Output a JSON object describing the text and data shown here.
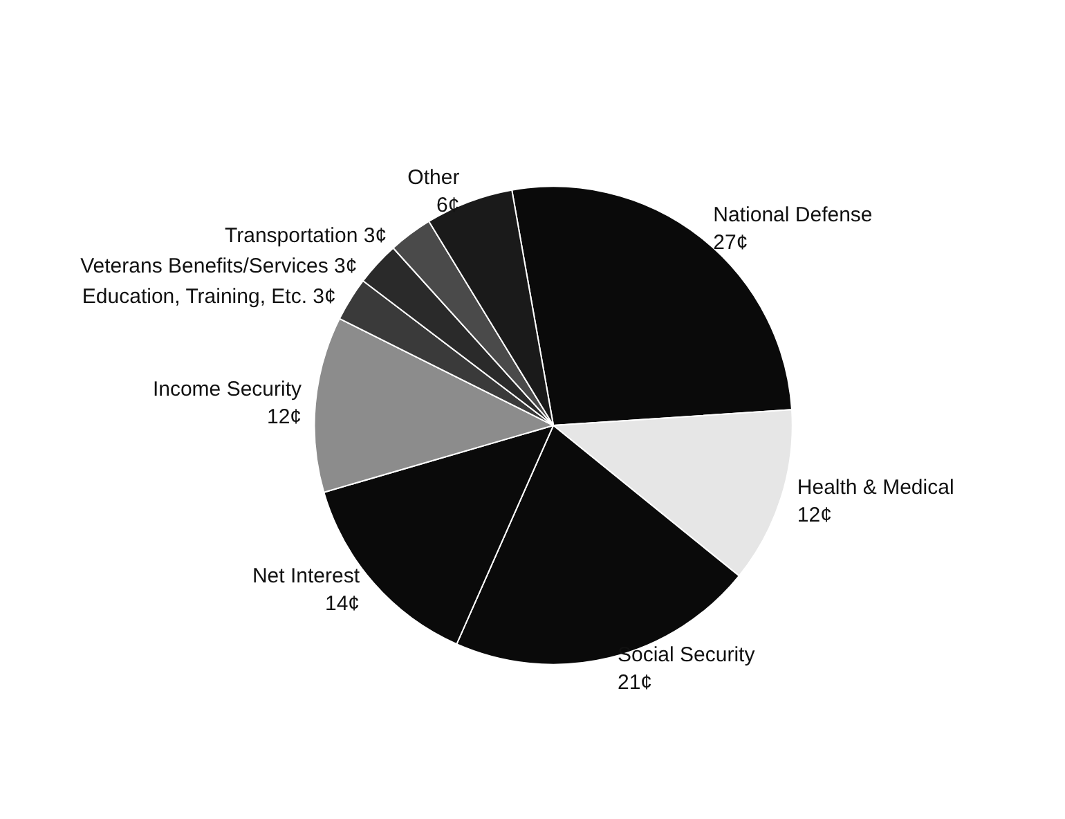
{
  "chart_data": {
    "type": "pie",
    "categories": [
      "National Defense",
      "Health & Medical",
      "Social Security",
      "Net Interest",
      "Income Security",
      "Education, Training, Etc.",
      "Veterans Benefits/Services",
      "Transportation",
      "Other"
    ],
    "values": [
      27,
      12,
      21,
      14,
      12,
      3,
      3,
      3,
      6
    ],
    "value_labels": [
      "27¢",
      "12¢",
      "21¢",
      "14¢",
      "12¢",
      "3¢",
      "3¢",
      "3¢",
      "6¢"
    ],
    "colors": [
      "#0a0a0a",
      "#e6e6e6",
      "#0a0a0a",
      "#0a0a0a",
      "#8c8c8c",
      "#3a3a3a",
      "#2a2a2a",
      "#4a4a4a",
      "#1a1a1a"
    ],
    "legend": false
  }
}
